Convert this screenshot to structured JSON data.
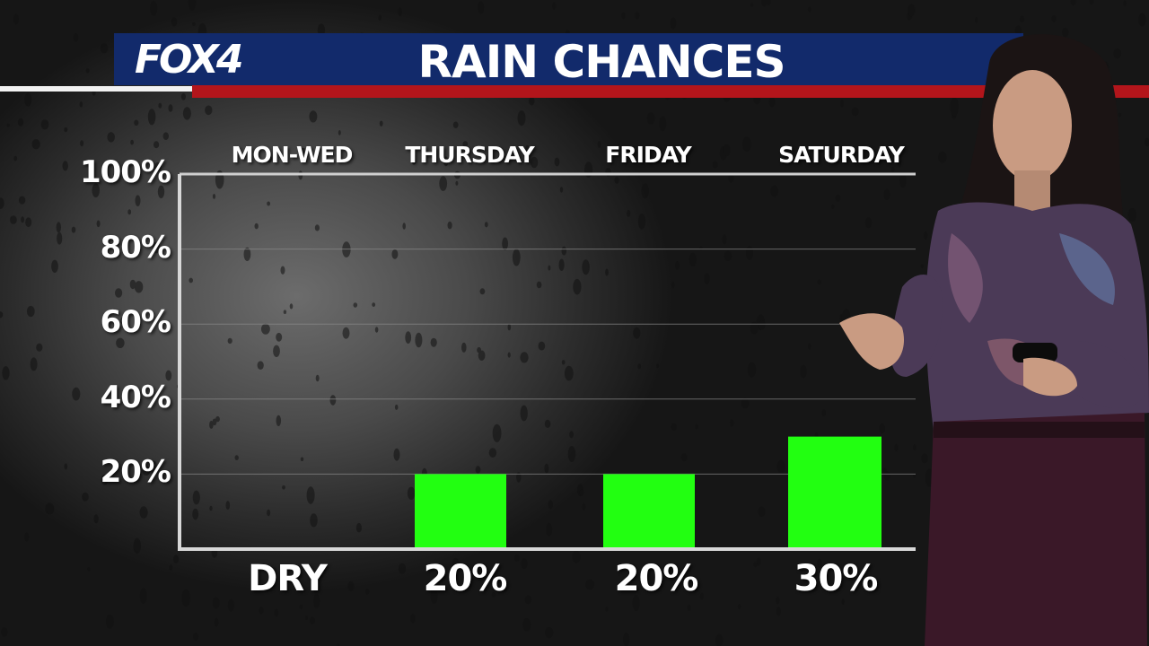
{
  "brand": {
    "logo_text": "FOX4"
  },
  "header": {
    "title": "RAIN CHANCES"
  },
  "colors": {
    "banner": "#122a6b",
    "rule_red": "#b3151b",
    "bar": "#22ff11"
  },
  "chart_data": {
    "type": "bar",
    "title": "RAIN CHANCES",
    "categories": [
      "MON-WED",
      "THURSDAY",
      "FRIDAY",
      "SATURDAY"
    ],
    "values": [
      0,
      20,
      20,
      30
    ],
    "value_labels": [
      "DRY",
      "20%",
      "20%",
      "30%"
    ],
    "y_ticks": [
      "100%",
      "80%",
      "60%",
      "40%",
      "20%"
    ],
    "ylim": [
      0,
      100
    ],
    "grid": true,
    "xlabel": "",
    "ylabel": ""
  }
}
